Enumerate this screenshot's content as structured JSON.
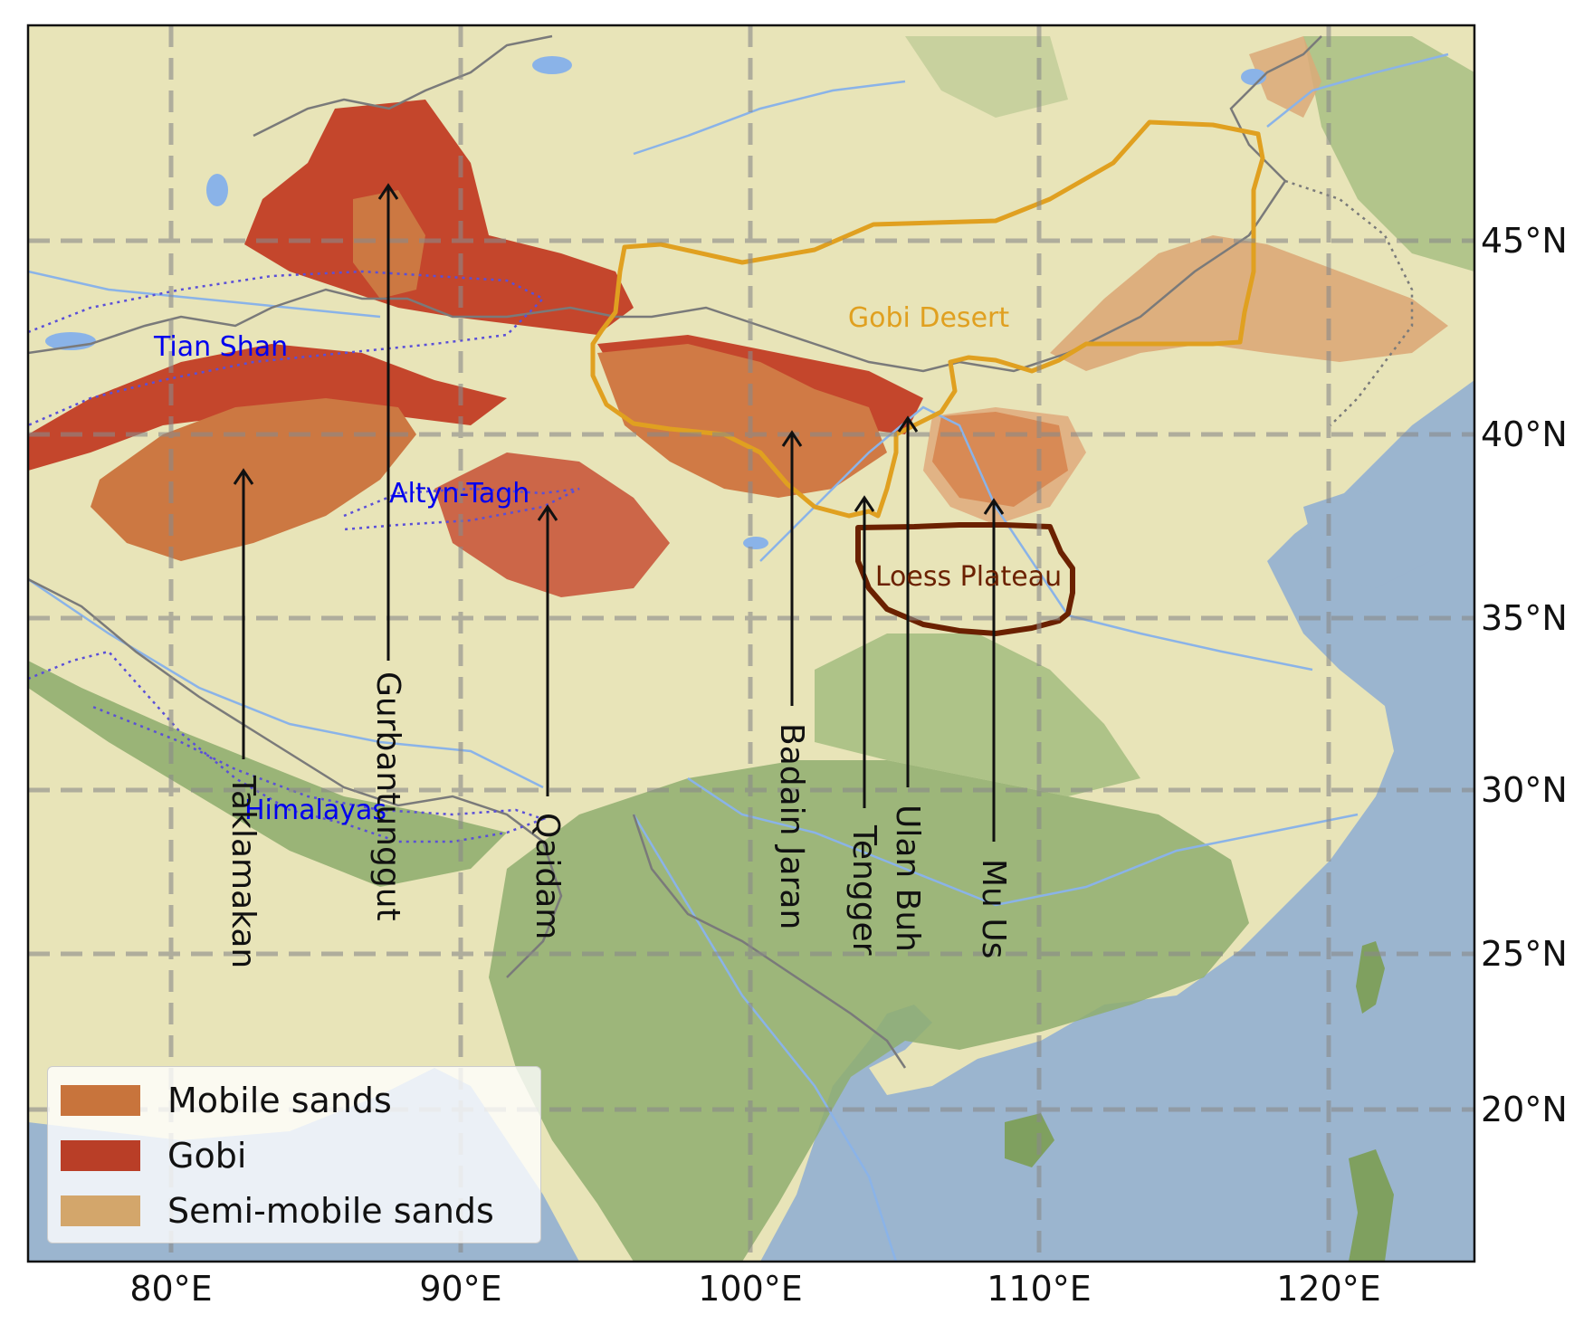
{
  "map": {
    "x_ticks": [
      "80°E",
      "90°E",
      "100°E",
      "110°E",
      "120°E"
    ],
    "y_ticks": [
      "45°N",
      "40°N",
      "35°N",
      "30°N",
      "25°N",
      "20°N"
    ],
    "regions": {
      "gobi_desert": "Gobi Desert",
      "loess_plateau": "Loess Plateau"
    },
    "mountains": {
      "tian_shan": "Tian Shan",
      "altyn_tagh": "Altyn-Tagh",
      "himalayas": "Himalayas"
    },
    "deserts": [
      "Taklamakan",
      "Gurbantunggut",
      "Qaidam",
      "Badain Jaran",
      "Tengger",
      "Ulan Buh",
      "Mu Us"
    ]
  },
  "legend": {
    "items": [
      {
        "label": "Mobile sands",
        "color": "#c8743c"
      },
      {
        "label": "Gobi",
        "color": "#b93e27"
      },
      {
        "label": "Semi-mobile sands",
        "color": "#d3a66b"
      }
    ]
  },
  "colors": {
    "gobi_outline": "#e0a020",
    "loess_outline": "#6b2100",
    "mountain_label": "#0000ee",
    "river": "#8ab3e8",
    "ocean": "#9bb5cf",
    "land": "#e8e4b8"
  }
}
